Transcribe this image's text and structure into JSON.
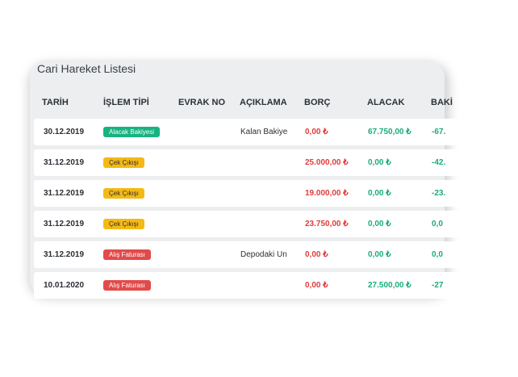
{
  "panel": {
    "title": "Cari Hareket Listesi"
  },
  "table": {
    "headers": [
      "TARİH",
      "İŞLEM TİPİ",
      "EVRAK NO",
      "AÇIKLAMA",
      "BORÇ",
      "ALACAK",
      "BAKİ"
    ],
    "rows": [
      {
        "date": "30.12.2019",
        "type": "Alacak Bakiyesi",
        "type_color": "#16b380",
        "type_text_color": "#ffffff",
        "doc_no": "",
        "desc": "Kalan Bakiye",
        "debit": "0,00 ₺",
        "credit": "67.750,00 ₺",
        "balance": "-67."
      },
      {
        "date": "31.12.2019",
        "type": "Çek Çıkışı",
        "type_color": "#f5b915",
        "type_text_color": "#2c3136",
        "doc_no": "",
        "desc": "",
        "debit": "25.000,00 ₺",
        "credit": "0,00 ₺",
        "balance": "-42."
      },
      {
        "date": "31.12.2019",
        "type": "Çek Çıkışı",
        "type_color": "#f5b915",
        "type_text_color": "#2c3136",
        "doc_no": "",
        "desc": "",
        "debit": "19.000,00 ₺",
        "credit": "0,00 ₺",
        "balance": "-23."
      },
      {
        "date": "31.12.2019",
        "type": "Çek Çıkışı",
        "type_color": "#f5b915",
        "type_text_color": "#2c3136",
        "doc_no": "",
        "desc": "",
        "debit": "23.750,00 ₺",
        "credit": "0,00 ₺",
        "balance": "0,0"
      },
      {
        "date": "31.12.2019",
        "type": "Alış Faturası",
        "type_color": "#e24b4b",
        "type_text_color": "#ffffff",
        "doc_no": "",
        "desc": "Depodaki Un",
        "debit": "0,00 ₺",
        "credit": "0,00 ₺",
        "balance": "0,0"
      },
      {
        "date": "10.01.2020",
        "type": "Alış Faturası",
        "type_color": "#e24b4b",
        "type_text_color": "#ffffff",
        "doc_no": "",
        "desc": "",
        "debit": "0,00 ₺",
        "credit": "27.500,00 ₺",
        "balance": "-27"
      }
    ]
  },
  "colors": {
    "debit": "#e03c3c",
    "credit": "#19ad77"
  }
}
